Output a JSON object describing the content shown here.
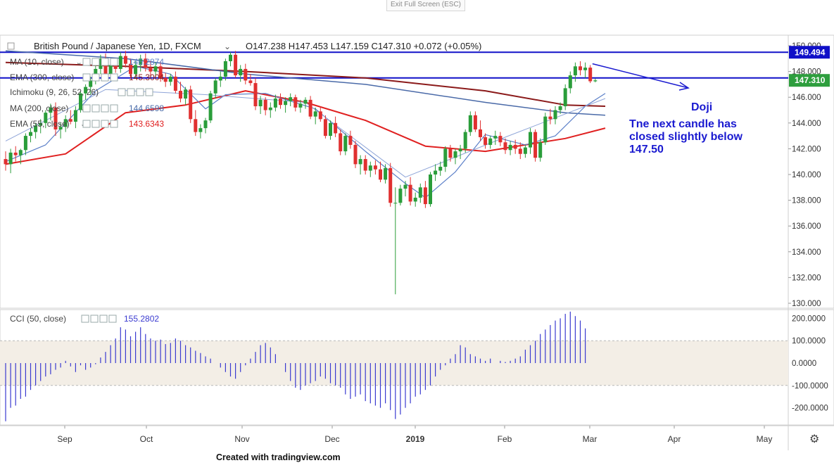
{
  "app": {
    "exit_label": "Exit Full Screen (ESC)",
    "footer": "Created with tradingview.com"
  },
  "header": {
    "symbol": "British Pound / Japanese Yen, 1D, FXCM",
    "ohlc": "O147.238  H147.453  L147.159  C147.310  +0.072 (+0.05%)"
  },
  "indicators": [
    {
      "name": "MA (10, close)",
      "value": "146.2874",
      "color": "#5b7fc8"
    },
    {
      "name": "EMA (300, close)",
      "value": "145.3004",
      "color": "#8b1a1a"
    },
    {
      "name": "Ichimoku (9, 26, 52, 26)",
      "value": "",
      "color": "#5b7fc8"
    },
    {
      "name": "MA (200, close)",
      "value": "144.6598",
      "color": "#4a6aa8"
    },
    {
      "name": "EMA (55, close)",
      "value": "143.6343",
      "color": "#e02020"
    }
  ],
  "cci": {
    "name": "CCI (50, close)",
    "value": "155.2802"
  },
  "annotations": {
    "label": "Doji",
    "text_lines": [
      "Tne next candle has",
      "closed slightly below",
      "147.50"
    ]
  },
  "price_labels": {
    "line_high": "149.494",
    "last": "147.310"
  },
  "colors": {
    "up": "#2a9d3a",
    "down": "#e03030",
    "hline": "#1010c8",
    "cci": "#3a3ad0",
    "band": "#f3eee6",
    "annot": "#1a1ad0"
  },
  "chart_data": {
    "type": "candlestick",
    "price_axis": {
      "ticks": [
        130,
        132,
        134,
        136,
        138,
        140,
        142,
        144,
        146,
        148,
        150
      ],
      "tick_labels": [
        "130.000",
        "132.000",
        "134.000",
        "136.000",
        "138.000",
        "140.000",
        "142.000",
        "144.000",
        "146.000",
        "148.000",
        "150.000"
      ]
    },
    "time_axis": {
      "labels": [
        "Sep",
        "Oct",
        "Nov",
        "Dec",
        "2019",
        "Feb",
        "Mar",
        "Apr",
        "May"
      ]
    },
    "horizontal_lines": [
      149.494,
      147.5
    ],
    "candles": [
      [
        141.2,
        141.8,
        140.3,
        140.8
      ],
      [
        140.8,
        142.0,
        140.1,
        141.7
      ],
      [
        141.7,
        142.2,
        141.0,
        141.5
      ],
      [
        141.5,
        142.0,
        140.8,
        141.9
      ],
      [
        141.9,
        143.2,
        141.5,
        143.0
      ],
      [
        143.0,
        143.6,
        142.5,
        143.3
      ],
      [
        143.3,
        144.0,
        142.8,
        143.8
      ],
      [
        143.8,
        144.3,
        143.2,
        144.0
      ],
      [
        144.0,
        145.0,
        143.6,
        144.8
      ],
      [
        144.8,
        145.5,
        144.2,
        145.2
      ],
      [
        145.2,
        145.6,
        143.0,
        143.5
      ],
      [
        143.5,
        144.0,
        142.8,
        143.7
      ],
      [
        143.7,
        144.6,
        143.3,
        144.3
      ],
      [
        144.3,
        145.0,
        143.9,
        144.1
      ],
      [
        144.1,
        145.3,
        143.6,
        145.0
      ],
      [
        145.0,
        146.5,
        144.8,
        146.3
      ],
      [
        146.3,
        147.0,
        145.8,
        146.8
      ],
      [
        146.8,
        147.6,
        146.2,
        147.3
      ],
      [
        147.3,
        148.5,
        147.0,
        148.2
      ],
      [
        148.2,
        149.3,
        147.8,
        149.0
      ],
      [
        149.0,
        149.4,
        147.5,
        147.8
      ],
      [
        147.8,
        148.8,
        147.3,
        148.5
      ],
      [
        148.5,
        149.0,
        147.9,
        148.2
      ],
      [
        148.2,
        149.5,
        147.9,
        149.2
      ],
      [
        149.2,
        149.6,
        148.3,
        148.6
      ],
      [
        148.6,
        149.0,
        147.5,
        147.8
      ],
      [
        147.8,
        148.8,
        147.5,
        148.5
      ],
      [
        148.5,
        149.3,
        148.0,
        149.0
      ],
      [
        149.0,
        149.4,
        148.0,
        148.3
      ],
      [
        148.3,
        148.8,
        147.6,
        148.0
      ],
      [
        148.0,
        148.7,
        147.5,
        148.4
      ],
      [
        148.4,
        148.8,
        147.2,
        147.5
      ],
      [
        147.5,
        147.9,
        146.8,
        147.2
      ],
      [
        147.2,
        147.8,
        146.9,
        147.6
      ],
      [
        147.6,
        148.0,
        146.3,
        146.5
      ],
      [
        146.5,
        147.2,
        145.6,
        145.9
      ],
      [
        145.9,
        146.8,
        145.4,
        146.6
      ],
      [
        146.6,
        146.9,
        144.0,
        144.3
      ],
      [
        144.3,
        145.0,
        143.0,
        143.3
      ],
      [
        143.3,
        143.9,
        142.8,
        143.6
      ],
      [
        143.6,
        144.4,
        143.2,
        144.2
      ],
      [
        144.2,
        146.5,
        144.0,
        146.3
      ],
      [
        146.3,
        147.5,
        145.9,
        147.3
      ],
      [
        147.3,
        148.0,
        146.8,
        147.6
      ],
      [
        147.6,
        149.0,
        147.3,
        148.8
      ],
      [
        148.8,
        149.5,
        148.4,
        149.3
      ],
      [
        149.3,
        149.6,
        147.5,
        147.7
      ],
      [
        147.7,
        148.5,
        147.2,
        148.2
      ],
      [
        148.2,
        148.6,
        147.0,
        147.3
      ],
      [
        147.3,
        147.8,
        146.9,
        147.1
      ],
      [
        147.1,
        147.5,
        145.0,
        145.3
      ],
      [
        145.3,
        146.1,
        144.7,
        145.8
      ],
      [
        145.8,
        146.0,
        144.6,
        145.0
      ],
      [
        145.0,
        145.6,
        144.4,
        145.2
      ],
      [
        145.2,
        146.2,
        144.9,
        145.9
      ],
      [
        145.9,
        146.3,
        145.1,
        145.4
      ],
      [
        145.4,
        146.0,
        144.8,
        145.7
      ],
      [
        145.7,
        146.3,
        145.3,
        146.0
      ],
      [
        146.0,
        146.2,
        144.9,
        145.2
      ],
      [
        145.2,
        145.8,
        144.8,
        145.5
      ],
      [
        145.5,
        146.0,
        145.1,
        145.8
      ],
      [
        145.8,
        146.1,
        144.3,
        144.5
      ],
      [
        144.5,
        145.2,
        143.9,
        144.9
      ],
      [
        144.9,
        145.3,
        144.1,
        144.3
      ],
      [
        144.3,
        144.6,
        142.8,
        143.0
      ],
      [
        143.0,
        144.2,
        142.7,
        144.0
      ],
      [
        144.0,
        144.5,
        142.9,
        143.2
      ],
      [
        143.2,
        143.5,
        141.5,
        141.8
      ],
      [
        141.8,
        143.2,
        141.5,
        143.0
      ],
      [
        143.0,
        143.4,
        142.0,
        142.3
      ],
      [
        142.3,
        142.6,
        140.5,
        140.8
      ],
      [
        140.8,
        141.5,
        140.0,
        141.2
      ],
      [
        141.2,
        141.5,
        140.0,
        140.3
      ],
      [
        140.3,
        141.0,
        139.8,
        140.7
      ],
      [
        140.7,
        141.1,
        140.0,
        140.4
      ],
      [
        140.4,
        141.0,
        139.4,
        139.6
      ],
      [
        139.6,
        140.8,
        139.3,
        140.5
      ],
      [
        140.5,
        140.9,
        137.5,
        137.8
      ],
      [
        137.8,
        139.0,
        130.7,
        137.8
      ],
      [
        137.8,
        139.2,
        137.6,
        138.9
      ],
      [
        138.9,
        139.5,
        138.3,
        139.2
      ],
      [
        139.2,
        139.8,
        137.6,
        137.9
      ],
      [
        137.9,
        138.6,
        137.5,
        138.2
      ],
      [
        138.2,
        139.3,
        137.8,
        139.0
      ],
      [
        139.0,
        139.5,
        137.4,
        137.7
      ],
      [
        137.7,
        140.2,
        137.5,
        140.0
      ],
      [
        140.0,
        140.8,
        139.5,
        140.3
      ],
      [
        140.3,
        141.0,
        139.9,
        140.6
      ],
      [
        140.6,
        142.2,
        140.2,
        142.0
      ],
      [
        142.0,
        142.3,
        141.0,
        141.3
      ],
      [
        141.3,
        142.0,
        140.8,
        141.8
      ],
      [
        141.8,
        142.3,
        141.2,
        142.0
      ],
      [
        142.0,
        143.5,
        141.7,
        143.3
      ],
      [
        143.3,
        144.9,
        143.0,
        144.6
      ],
      [
        144.6,
        144.9,
        143.3,
        143.5
      ],
      [
        143.5,
        144.2,
        142.6,
        142.9
      ],
      [
        142.9,
        143.2,
        142.0,
        142.3
      ],
      [
        142.3,
        143.0,
        142.0,
        142.8
      ],
      [
        142.8,
        143.4,
        142.3,
        143.0
      ],
      [
        143.0,
        143.3,
        142.2,
        142.5
      ],
      [
        142.5,
        142.8,
        141.6,
        141.9
      ],
      [
        141.9,
        142.6,
        141.5,
        142.3
      ],
      [
        142.3,
        142.7,
        141.6,
        142.0
      ],
      [
        142.0,
        142.5,
        141.2,
        141.6
      ],
      [
        141.6,
        142.3,
        141.3,
        142.1
      ],
      [
        142.1,
        143.6,
        141.6,
        143.3
      ],
      [
        143.3,
        143.5,
        141.0,
        141.3
      ],
      [
        141.3,
        142.8,
        141.0,
        142.5
      ],
      [
        142.5,
        144.8,
        142.3,
        144.5
      ],
      [
        144.5,
        145.1,
        143.9,
        144.3
      ],
      [
        144.3,
        145.3,
        143.9,
        145.0
      ],
      [
        145.0,
        145.6,
        144.7,
        145.3
      ],
      [
        145.3,
        147.0,
        145.0,
        146.7
      ],
      [
        146.7,
        148.0,
        146.3,
        147.7
      ],
      [
        147.7,
        148.7,
        147.2,
        148.4
      ],
      [
        148.4,
        148.8,
        147.7,
        148.1
      ],
      [
        148.1,
        148.7,
        147.5,
        148.3
      ],
      [
        148.3,
        148.5,
        147.1,
        147.24
      ],
      [
        147.24,
        147.45,
        147.16,
        147.31
      ]
    ],
    "lines": {
      "EMA (300, close)": [
        [
          0,
          148.7
        ],
        [
          24,
          148.4
        ],
        [
          48,
          148.0
        ],
        [
          72,
          147.5
        ],
        [
          96,
          146.5
        ],
        [
          112,
          145.4
        ],
        [
          120,
          145.3
        ]
      ],
      "MA (200, close)": [
        [
          0,
          149.6
        ],
        [
          24,
          149.0
        ],
        [
          48,
          147.8
        ],
        [
          72,
          147.0
        ],
        [
          96,
          145.6
        ],
        [
          112,
          144.8
        ],
        [
          120,
          144.6
        ]
      ],
      "EMA (55, close)": [
        [
          0,
          140.8
        ],
        [
          12,
          141.6
        ],
        [
          24,
          144.8
        ],
        [
          36,
          145.4
        ],
        [
          48,
          146.5
        ],
        [
          60,
          145.6
        ],
        [
          72,
          144.2
        ],
        [
          84,
          142.2
        ],
        [
          96,
          141.8
        ],
        [
          104,
          142.3
        ],
        [
          112,
          142.8
        ],
        [
          120,
          143.6
        ]
      ],
      "MA (10, close)": [
        [
          0,
          141.0
        ],
        [
          8,
          142.3
        ],
        [
          18,
          146.5
        ],
        [
          26,
          148.4
        ],
        [
          33,
          147.8
        ],
        [
          40,
          145.1
        ],
        [
          44,
          146.2
        ],
        [
          52,
          146.3
        ],
        [
          62,
          145.1
        ],
        [
          72,
          141.8
        ],
        [
          80,
          139.3
        ],
        [
          84,
          138.2
        ],
        [
          90,
          140.2
        ],
        [
          96,
          143.1
        ],
        [
          104,
          142.3
        ],
        [
          110,
          143.0
        ],
        [
          116,
          145.3
        ],
        [
          120,
          146.3
        ]
      ],
      "Ichimoku (9, 26, 52, 26)": [
        [
          0,
          142.6
        ],
        [
          20,
          146.6
        ],
        [
          40,
          146.2
        ],
        [
          60,
          145.6
        ],
        [
          80,
          139.8
        ],
        [
          100,
          142.9
        ],
        [
          120,
          145.9
        ]
      ]
    },
    "cci_axis": {
      "ticks": [
        -200,
        -100,
        0,
        100,
        200
      ],
      "tick_labels": [
        "-200.0000",
        "-100.0000",
        "0.0000",
        "100.0000",
        "200.0000"
      ],
      "band": [
        -100,
        100
      ]
    },
    "cci": [
      -260,
      -200,
      -190,
      -160,
      -150,
      -120,
      -100,
      -80,
      -60,
      -50,
      -30,
      -20,
      10,
      -15,
      -40,
      -10,
      -30,
      -20,
      -5,
      25,
      50,
      80,
      110,
      160,
      150,
      120,
      140,
      160,
      130,
      110,
      100,
      105,
      85,
      90,
      110,
      100,
      80,
      70,
      55,
      45,
      30,
      20,
      0,
      -20,
      -40,
      -60,
      -70,
      -40,
      -10,
      20,
      50,
      80,
      90,
      70,
      40,
      0,
      -40,
      -80,
      -110,
      -120,
      -100,
      -90,
      -80,
      -60,
      -70,
      -90,
      -100,
      -110,
      -140,
      -160,
      -150,
      -140,
      -170,
      -180,
      -190,
      -200,
      -180,
      -210,
      -250,
      -230,
      -200,
      -180,
      -150,
      -140,
      -120,
      -100,
      -60,
      -30,
      -10,
      20,
      40,
      80,
      70,
      40,
      30,
      20,
      10,
      20,
      0,
      10,
      5,
      10,
      20,
      30,
      60,
      80,
      100,
      130,
      150,
      170,
      190,
      200,
      220,
      230,
      210,
      190,
      155
    ],
    "cci_start": 0
  }
}
